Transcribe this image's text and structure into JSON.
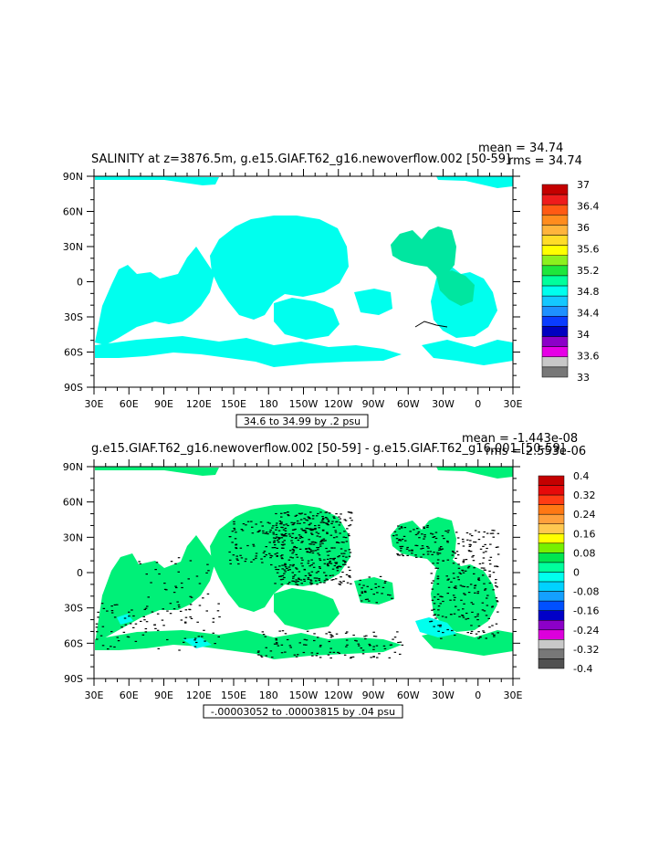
{
  "panels": [
    {
      "title": "SALINITY at z=3876.5m, g.e15.GIAF.T62_g16.newoverflow.002 [50-59]",
      "mean": "mean = 34.74",
      "rms": "rms = 34.74",
      "contour_note": "34.6 to 34.99 by .2 psu",
      "colorbar": {
        "labels": [
          "37",
          "36.4",
          "36",
          "35.6",
          "35.2",
          "34.8",
          "34.4",
          "34",
          "33.6",
          "33"
        ],
        "colors": [
          "#c40000",
          "#ee1c1c",
          "#ff5a14",
          "#ff8c1e",
          "#ffb43c",
          "#ffdc28",
          "#ffff00",
          "#8cf01e",
          "#1ee63c",
          "#00ff9c",
          "#00ffee",
          "#14c8ff",
          "#1e90ff",
          "#0a3cff",
          "#0000c0",
          "#8c00c8",
          "#e600e6",
          "#c8c8c8",
          "#787878"
        ]
      }
    },
    {
      "title": "g.e15.GIAF.T62_g16.newoverflow.002 [50-59] - g.e15.GIAF.T62_g16.001 [50-59]",
      "mean": "mean = -1.443e-08",
      "rms": "rms = 2.553e-06",
      "contour_note": "-.00003052 to .00003815 by .04 psu",
      "colorbar": {
        "labels": [
          "0.4",
          "0.32",
          "0.24",
          "0.16",
          "0.08",
          "0",
          "-0.08",
          "-0.16",
          "-0.24",
          "-0.32",
          "-0.4"
        ],
        "colors": [
          "#c40000",
          "#e60a0a",
          "#ff3c14",
          "#ff7814",
          "#ffa03c",
          "#ffc850",
          "#ffff00",
          "#78f000",
          "#00e650",
          "#00ff9c",
          "#00ffee",
          "#00d2ff",
          "#14a0ff",
          "#0050ff",
          "#0000c8",
          "#8c00c8",
          "#dc00dc",
          "#c8c8c8",
          "#787878",
          "#505050"
        ]
      }
    }
  ],
  "axes": {
    "x_ticks": [
      "30E",
      "60E",
      "90E",
      "120E",
      "150E",
      "180",
      "150W",
      "120W",
      "90W",
      "60W",
      "30W",
      "0",
      "30E"
    ],
    "y_ticks": [
      "90N",
      "60N",
      "30N",
      "0",
      "30S",
      "60S",
      "90S"
    ]
  },
  "chart_data": [
    {
      "type": "heatmap",
      "title": "SALINITY at z=3876.5m, g.e15.GIAF.T62_g16.newoverflow.002 [50-59]",
      "x_ticks": [
        "30E",
        "60E",
        "90E",
        "120E",
        "150E",
        "180",
        "150W",
        "120W",
        "90W",
        "60W",
        "30W",
        "0",
        "30E"
      ],
      "y_ticks": [
        "90N",
        "60N",
        "30N",
        "0",
        "30S",
        "60S",
        "90S"
      ],
      "xlim": [
        30,
        390
      ],
      "ylim": [
        -90,
        90
      ],
      "colorbar_range": [
        33,
        37
      ],
      "units": "psu",
      "mean": 34.74,
      "rms": 34.74,
      "dominant_value_range": [
        34.6,
        35.0
      ]
    },
    {
      "type": "heatmap",
      "title": "g.e15.GIAF.T62_g16.newoverflow.002 [50-59] - g.e15.GIAF.T62_g16.001 [50-59]",
      "x_ticks": [
        "30E",
        "60E",
        "90E",
        "120E",
        "150E",
        "180",
        "150W",
        "120W",
        "90W",
        "60W",
        "30W",
        "0",
        "30E"
      ],
      "y_ticks": [
        "90N",
        "60N",
        "30N",
        "0",
        "30S",
        "60S",
        "90S"
      ],
      "xlim": [
        30,
        390
      ],
      "ylim": [
        -90,
        90
      ],
      "colorbar_range": [
        -0.4,
        0.4
      ],
      "units": "psu",
      "mean": -1.443e-08,
      "rms": 2.553e-06,
      "dominant_value_range": [
        0,
        0.08
      ]
    }
  ]
}
